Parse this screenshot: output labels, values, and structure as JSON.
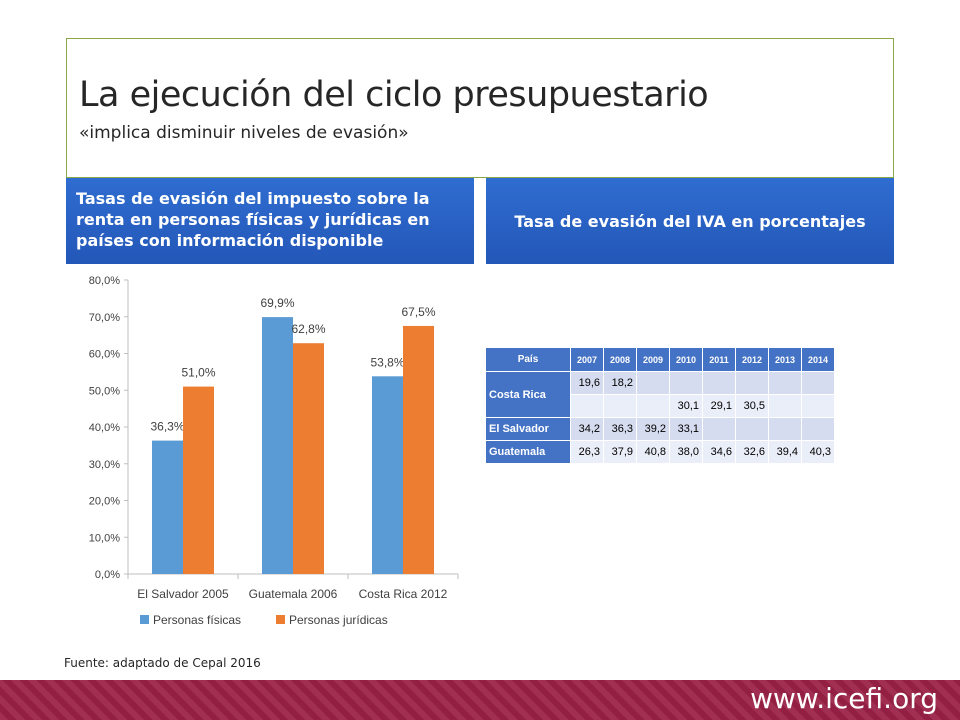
{
  "slide": {
    "title": "La ejecución del ciclo presupuestario",
    "subtitle": "«implica disminuir niveles de evasión»",
    "left_header": "Tasas de evasión del impuesto sobre la renta en personas físicas y jurídicas en países con información disponible",
    "right_header": "Tasa de evasión del IVA en porcentajes",
    "source": "Fuente: adaptado de Cepal 2016",
    "footer_url": "www.icefi.org"
  },
  "colors": {
    "series1": "#5b9bd5",
    "series2": "#ed7d31",
    "header_blue": "#2f6dd0",
    "footer": "#9b2246"
  },
  "chart_data": {
    "type": "bar",
    "categories": [
      "El Salvador 2005",
      "Guatemala 2006",
      "Costa Rica 2012"
    ],
    "series": [
      {
        "name": "Personas físicas",
        "values": [
          36.3,
          69.9,
          53.8
        ],
        "labels": [
          "36,3%",
          "69,9%",
          "53,8%"
        ]
      },
      {
        "name": "Personas jurídicas",
        "values": [
          51.0,
          62.8,
          67.5
        ],
        "labels": [
          "51,0%",
          "62,8%",
          "67,5%"
        ]
      }
    ],
    "ylim": [
      0,
      80
    ],
    "yticks": [
      "0,0%",
      "10,0%",
      "20,0%",
      "30,0%",
      "40,0%",
      "50,0%",
      "60,0%",
      "70,0%",
      "80,0%"
    ],
    "legend": "bottom"
  },
  "table": {
    "header_label": "País",
    "years": [
      "2007",
      "2008",
      "2009",
      "2010",
      "2011",
      "2012",
      "2013",
      "2014"
    ],
    "rows": [
      {
        "country": "Costa Rica",
        "values": [
          "19,6",
          "18,2",
          "",
          "",
          "",
          "",
          "",
          ""
        ]
      },
      {
        "country": "",
        "values": [
          "",
          "",
          "",
          "30,1",
          "29,1",
          "30,5",
          "",
          ""
        ]
      },
      {
        "country": "El Salvador",
        "values": [
          "34,2",
          "36,3",
          "39,2",
          "33,1",
          "",
          "",
          "",
          ""
        ]
      },
      {
        "country": "Guatemala",
        "values": [
          "26,3",
          "37,9",
          "40,8",
          "38,0",
          "34,6",
          "32,6",
          "39,4",
          "40,3"
        ]
      }
    ]
  }
}
